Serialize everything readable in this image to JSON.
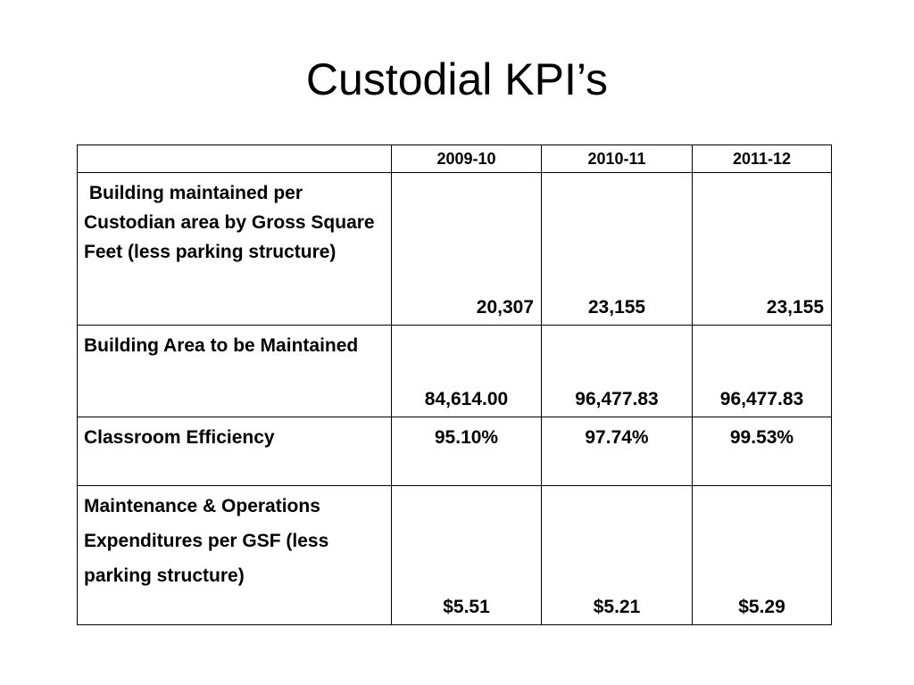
{
  "slide": {
    "title": "Custodial KPI’s"
  },
  "table": {
    "corner": "",
    "headers": [
      "2009-10",
      "2010-11",
      "2011-12"
    ],
    "rows": [
      {
        "label": " Building maintained per Custodian area by Gross Square Feet (less parking structure)",
        "values": [
          "20,307",
          "23,155",
          "23,155"
        ]
      },
      {
        "label": "Building  Area to be Maintained",
        "values": [
          "84,614.00",
          "96,477.83",
          "96,477.83"
        ]
      },
      {
        "label": "Classroom Efficiency",
        "values": [
          "95.10%",
          "97.74%",
          "99.53%"
        ]
      },
      {
        "label": "Maintenance & Operations Expenditures per GSF (less parking structure)",
        "values": [
          "$5.51",
          "$5.21",
          "$5.29"
        ]
      }
    ]
  }
}
